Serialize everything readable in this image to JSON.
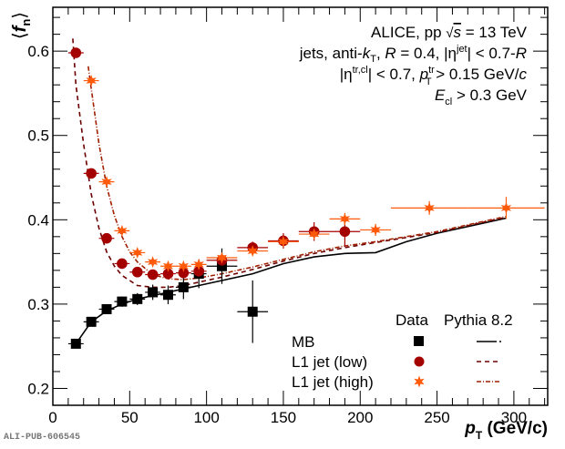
{
  "chart_data": {
    "type": "scatter",
    "title": "",
    "xlabel": "p_T (GeV/c)",
    "xlabel_main": "p",
    "xlabel_sub": "T",
    "xlabel_unit": " (GeV/c)",
    "ylabel": "⟨f_n⟩",
    "xlim": [
      0,
      322
    ],
    "ylim": [
      0.18,
      0.652
    ],
    "xticks": [
      0,
      50,
      100,
      150,
      200,
      250,
      300
    ],
    "xtick_labels": [
      "0",
      "50",
      "100",
      "150",
      "200",
      "250",
      "300"
    ],
    "yticks": [
      0.2,
      0.3,
      0.4,
      0.5,
      0.6
    ],
    "ytick_labels": [
      "0.2",
      "0.3",
      "0.4",
      "0.5",
      "0.6"
    ],
    "grid": false,
    "annotations": [
      "ALICE, pp √s = 13 TeV",
      "jets, anti-kT, R = 0.4, |η^jet| < 0.7-R",
      "|η^tr,cl| < 0.7, p_T^tr > 0.15 GeV/c",
      "E_cl > 0.3 GeV"
    ],
    "legend": {
      "position": "bottom-right",
      "header_data": "Data",
      "header_model": "Pythia 8.2",
      "entries": [
        "MB",
        "L1 jet (low)",
        "L1 jet (high)"
      ]
    },
    "series": [
      {
        "name": "MB",
        "kind": "data",
        "marker": "square",
        "color": "#000000",
        "points": [
          {
            "x": 15,
            "y": 0.253,
            "xerr": 5,
            "yerr": 0.004
          },
          {
            "x": 25,
            "y": 0.279,
            "xerr": 5,
            "yerr": 0.004
          },
          {
            "x": 35,
            "y": 0.294,
            "xerr": 5,
            "yerr": 0.004
          },
          {
            "x": 45,
            "y": 0.303,
            "xerr": 5,
            "yerr": 0.005
          },
          {
            "x": 55,
            "y": 0.306,
            "xerr": 5,
            "yerr": 0.006
          },
          {
            "x": 65,
            "y": 0.314,
            "xerr": 5,
            "yerr": 0.008
          },
          {
            "x": 75,
            "y": 0.311,
            "xerr": 5,
            "yerr": 0.01
          },
          {
            "x": 85,
            "y": 0.32,
            "xerr": 5,
            "yerr": 0.013
          },
          {
            "x": 95,
            "y": 0.336,
            "xerr": 5,
            "yerr": 0.016
          },
          {
            "x": 110,
            "y": 0.345,
            "xerr": 10,
            "yerr": 0.02
          },
          {
            "x": 130,
            "y": 0.291,
            "xerr": 10,
            "yerr": 0.036
          }
        ]
      },
      {
        "name": "L1 jet (low)",
        "kind": "data",
        "marker": "circle",
        "color": "#a50000",
        "points": [
          {
            "x": 15,
            "y": 0.598,
            "xerr": 5,
            "yerr": 0.002
          },
          {
            "x": 25,
            "y": 0.455,
            "xerr": 5,
            "yerr": 0.002
          },
          {
            "x": 35,
            "y": 0.378,
            "xerr": 5,
            "yerr": 0.002
          },
          {
            "x": 45,
            "y": 0.348,
            "xerr": 5,
            "yerr": 0.002
          },
          {
            "x": 55,
            "y": 0.338,
            "xerr": 5,
            "yerr": 0.003
          },
          {
            "x": 65,
            "y": 0.335,
            "xerr": 5,
            "yerr": 0.003
          },
          {
            "x": 75,
            "y": 0.336,
            "xerr": 5,
            "yerr": 0.003
          },
          {
            "x": 85,
            "y": 0.337,
            "xerr": 5,
            "yerr": 0.004
          },
          {
            "x": 95,
            "y": 0.339,
            "xerr": 5,
            "yerr": 0.005
          },
          {
            "x": 110,
            "y": 0.352,
            "xerr": 10,
            "yerr": 0.005
          },
          {
            "x": 130,
            "y": 0.367,
            "xerr": 10,
            "yerr": 0.006
          },
          {
            "x": 150,
            "y": 0.375,
            "xerr": 10,
            "yerr": 0.008
          },
          {
            "x": 170,
            "y": 0.386,
            "xerr": 10,
            "yerr": 0.01
          },
          {
            "x": 190,
            "y": 0.386,
            "xerr": 10,
            "yerr": 0.017
          }
        ]
      },
      {
        "name": "L1 jet (high)",
        "kind": "data",
        "marker": "star",
        "color": "#ff5a0a",
        "points": [
          {
            "x": 25,
            "y": 0.565,
            "xerr": 5,
            "yerr": 0.002
          },
          {
            "x": 35,
            "y": 0.445,
            "xerr": 5,
            "yerr": 0.002
          },
          {
            "x": 45,
            "y": 0.387,
            "xerr": 5,
            "yerr": 0.002
          },
          {
            "x": 55,
            "y": 0.361,
            "xerr": 5,
            "yerr": 0.002
          },
          {
            "x": 65,
            "y": 0.35,
            "xerr": 5,
            "yerr": 0.002
          },
          {
            "x": 75,
            "y": 0.345,
            "xerr": 5,
            "yerr": 0.002
          },
          {
            "x": 85,
            "y": 0.345,
            "xerr": 5,
            "yerr": 0.002
          },
          {
            "x": 95,
            "y": 0.347,
            "xerr": 5,
            "yerr": 0.003
          },
          {
            "x": 110,
            "y": 0.355,
            "xerr": 10,
            "yerr": 0.003
          },
          {
            "x": 130,
            "y": 0.363,
            "xerr": 10,
            "yerr": 0.004
          },
          {
            "x": 150,
            "y": 0.374,
            "xerr": 10,
            "yerr": 0.005
          },
          {
            "x": 170,
            "y": 0.383,
            "xerr": 10,
            "yerr": 0.005
          },
          {
            "x": 190,
            "y": 0.401,
            "xerr": 10,
            "yerr": 0.006
          },
          {
            "x": 210,
            "y": 0.388,
            "xerr": 10,
            "yerr": 0.006
          },
          {
            "x": 245,
            "y": 0.414,
            "xerr": 25,
            "yerr": 0.007
          },
          {
            "x": 295,
            "y": 0.414,
            "xerr": 25,
            "yerr": 0.012
          }
        ]
      },
      {
        "name": "Pythia 8.2 MB",
        "kind": "model",
        "style": "solid",
        "color": "#000000",
        "x": [
          15,
          25,
          35,
          45,
          55,
          65,
          75,
          85,
          95,
          110,
          130,
          150,
          170,
          190,
          210,
          230,
          250,
          295
        ],
        "y": [
          0.253,
          0.279,
          0.292,
          0.3,
          0.306,
          0.31,
          0.314,
          0.318,
          0.322,
          0.328,
          0.336,
          0.348,
          0.356,
          0.36,
          0.361,
          0.374,
          0.384,
          0.402
        ]
      },
      {
        "name": "Pythia 8.2 L1 jet (low)",
        "kind": "model",
        "style": "dashed",
        "color": "#6b0000",
        "x": [
          13,
          15,
          20,
          25,
          30,
          35,
          40,
          45,
          55,
          65,
          75,
          85,
          95,
          110,
          130,
          150,
          170,
          190,
          210,
          230,
          250,
          295
        ],
        "y": [
          0.615,
          0.56,
          0.49,
          0.43,
          0.39,
          0.362,
          0.345,
          0.334,
          0.322,
          0.32,
          0.32,
          0.322,
          0.326,
          0.332,
          0.341,
          0.351,
          0.36,
          0.367,
          0.373,
          0.379,
          0.385,
          0.403
        ]
      },
      {
        "name": "Pythia 8.2 L1 jet (high)",
        "kind": "model",
        "style": "dash-dot",
        "color": "#a02000",
        "x": [
          23,
          25,
          30,
          35,
          40,
          45,
          50,
          55,
          65,
          75,
          85,
          95,
          110,
          130,
          150,
          170,
          190,
          210,
          230,
          250,
          295
        ],
        "y": [
          0.582,
          0.555,
          0.49,
          0.44,
          0.405,
          0.38,
          0.362,
          0.35,
          0.335,
          0.33,
          0.329,
          0.331,
          0.336,
          0.344,
          0.353,
          0.362,
          0.369,
          0.374,
          0.38,
          0.386,
          0.404
        ]
      }
    ]
  },
  "footer": {
    "publication_id": "ALI-PUB-606545"
  }
}
